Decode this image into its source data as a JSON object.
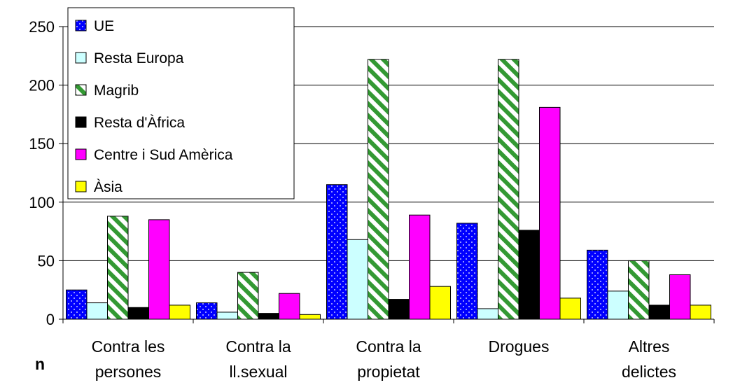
{
  "chart_data": {
    "type": "bar",
    "categories": [
      [
        "Contra les",
        "persones"
      ],
      [
        "Contra la",
        "ll.sexual"
      ],
      [
        "Contra la",
        "propietat"
      ],
      [
        "Drogues"
      ],
      [
        "Altres",
        "delictes"
      ]
    ],
    "series": [
      {
        "name": "UE",
        "values": [
          25,
          14,
          115,
          82,
          59
        ],
        "color": "#0000ff",
        "pattern": "dots"
      },
      {
        "name": "Resta Europa",
        "values": [
          14,
          6,
          68,
          9,
          24
        ],
        "color": "#ccffff",
        "pattern": "solid"
      },
      {
        "name": "Magrib",
        "values": [
          88,
          40,
          222,
          222,
          50
        ],
        "color": "#339933",
        "pattern": "diagonal-stripes"
      },
      {
        "name": "Resta d'Àfrica",
        "values": [
          10,
          5,
          17,
          76,
          12
        ],
        "color": "#000000",
        "pattern": "solid"
      },
      {
        "name": "Centre i Sud Amèrica",
        "values": [
          85,
          22,
          89,
          181,
          38
        ],
        "color": "#ff00ff",
        "pattern": "solid"
      },
      {
        "name": "Àsia",
        "values": [
          12,
          4,
          28,
          18,
          12
        ],
        "color": "#ffff00",
        "pattern": "solid"
      }
    ],
    "yticks": [
      0,
      50,
      100,
      150,
      200,
      250
    ],
    "ylim": [
      0,
      250
    ],
    "xlabel": "n",
    "ylabel": "",
    "grid": "horizontal",
    "legend_position": "top-left"
  }
}
